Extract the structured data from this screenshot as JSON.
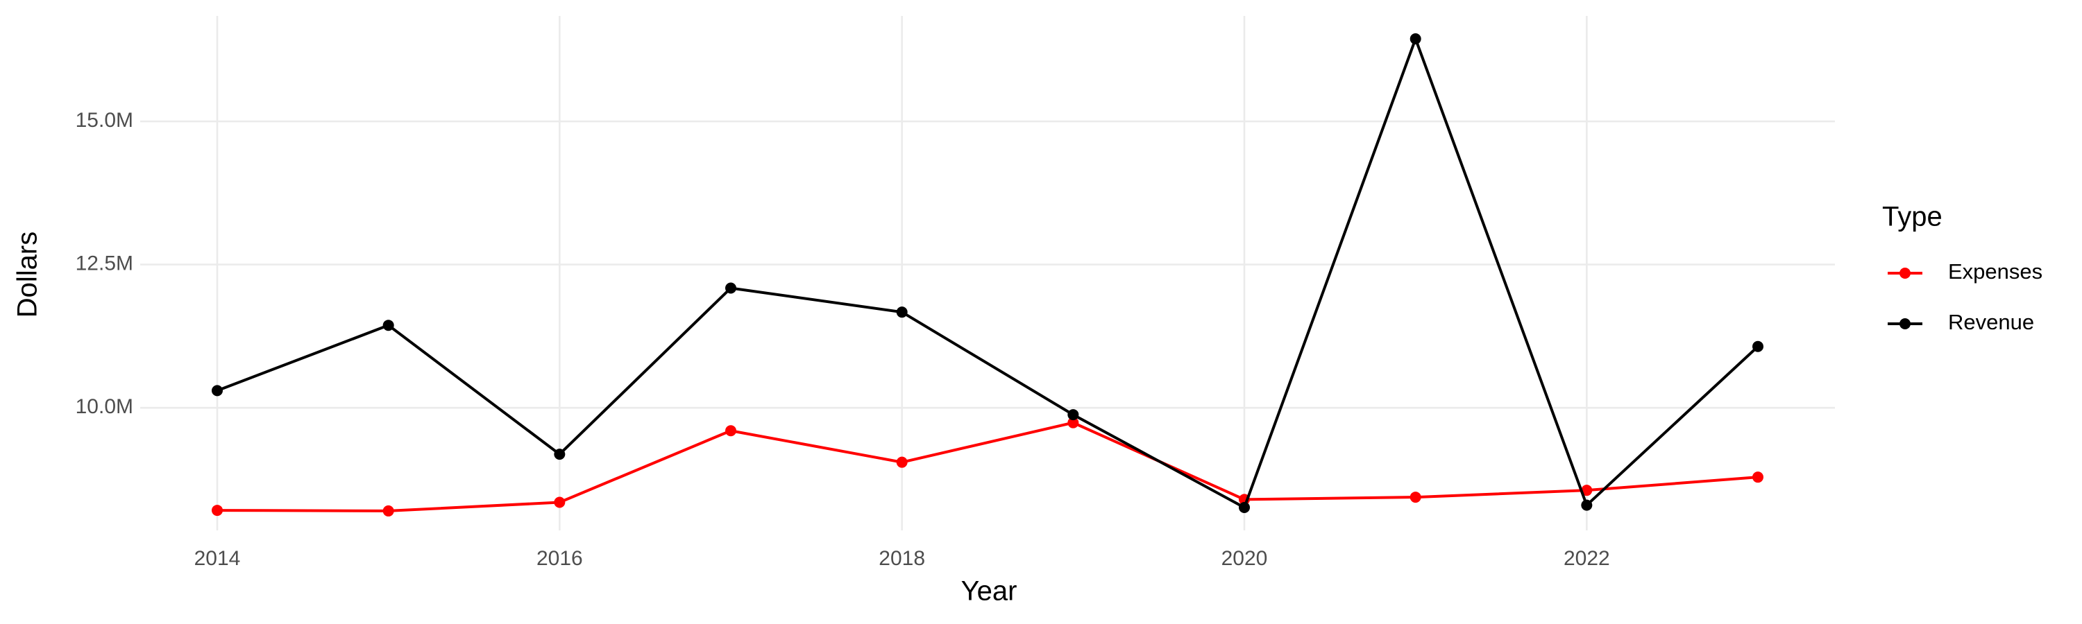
{
  "chart_data": {
    "type": "line",
    "x_label": "Year",
    "y_label": "Dollars",
    "x": [
      2014,
      2015,
      2016,
      2017,
      2018,
      2019,
      2020,
      2021,
      2022,
      2023
    ],
    "series": [
      {
        "name": "Expenses",
        "color": "#ff0000",
        "values": [
          8210000,
          8200000,
          8350000,
          9600000,
          9050000,
          9740000,
          8400000,
          8440000,
          8560000,
          8790000
        ]
      },
      {
        "name": "Revenue",
        "color": "#000000",
        "values": [
          10300000,
          11440000,
          9190000,
          12090000,
          11670000,
          9880000,
          8260000,
          16440000,
          8300000,
          11070000
        ]
      }
    ],
    "xlim": [
      2013.55,
      2023.45
    ],
    "xticks": [
      2014,
      2016,
      2018,
      2020,
      2022
    ],
    "ylim": [
      7860000,
      16840000
    ],
    "yticks": [
      {
        "value": 10000000,
        "label": "10.0M"
      },
      {
        "value": 12500000,
        "label": "12.5M"
      },
      {
        "value": 15000000,
        "label": "15.0M"
      }
    ],
    "grid": true,
    "legend_title": "Type",
    "legend": "right"
  }
}
